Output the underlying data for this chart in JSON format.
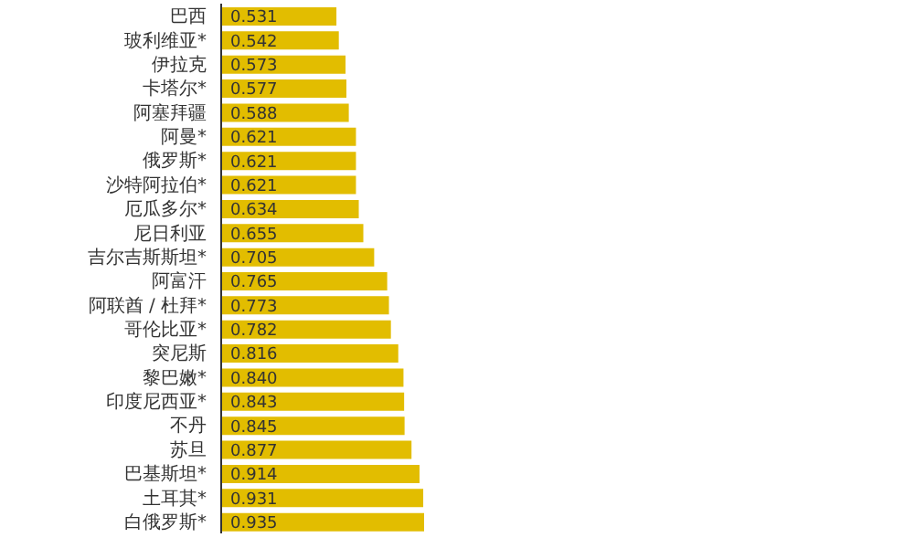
{
  "chart_data": {
    "type": "bar",
    "orientation": "horizontal",
    "tick_labels": "y",
    "color": "#e2bd00",
    "categories": [
      "巴西",
      "玻利维亚*",
      "伊拉克",
      "卡塔尔*",
      "阿塞拜疆",
      "阿曼*",
      "俄罗斯*",
      "沙特阿拉伯*",
      "厄瓜多尔*",
      "尼日利亚",
      "吉尔吉斯斯坦*",
      "阿富汗",
      "阿联酋 / 杜拜*",
      "哥伦比亚*",
      "突尼斯",
      "黎巴嫩*",
      "印度尼西亚*",
      "不丹",
      "苏旦",
      "巴基斯坦*",
      "土耳其*",
      "白俄罗斯*"
    ],
    "values": [
      0.531,
      0.542,
      0.573,
      0.577,
      0.588,
      0.621,
      0.621,
      0.621,
      0.634,
      0.655,
      0.705,
      0.765,
      0.773,
      0.782,
      0.816,
      0.84,
      0.843,
      0.845,
      0.877,
      0.914,
      0.931,
      0.935
    ],
    "value_labels": [
      "0.531",
      "0.542",
      "0.573",
      "0.577",
      "0.588",
      "0.621",
      "0.621",
      "0.621",
      "0.634",
      "0.655",
      "0.705",
      "0.765",
      "0.773",
      "0.782",
      "0.816",
      "0.840",
      "0.843",
      "0.845",
      "0.877",
      "0.914",
      "0.931",
      "0.935"
    ]
  }
}
